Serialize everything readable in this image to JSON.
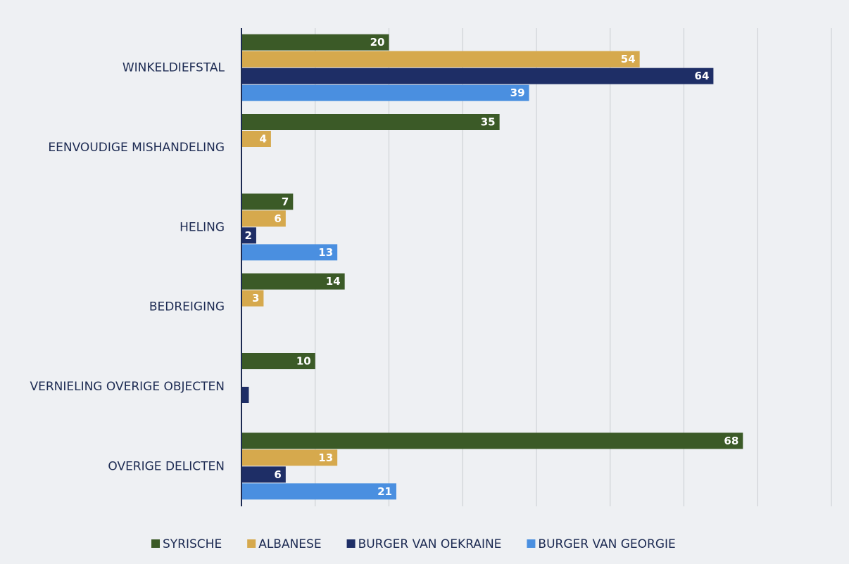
{
  "chart_data": {
    "type": "hbar",
    "categories": [
      "WINKELDIEFSTAL",
      "EENVOUDIGE MISHANDELING",
      "HELING",
      "BEDREIGING",
      "VERNIELING OVERIGE OBJECTEN",
      "OVERIGE DELICTEN"
    ],
    "series": [
      {
        "name": "SYRISCHE",
        "color": "#3b5a27",
        "values": [
          20,
          35,
          7,
          14,
          10,
          68
        ]
      },
      {
        "name": "ALBANESE",
        "color": "#d6a94d",
        "values": [
          54,
          4,
          6,
          3,
          null,
          13
        ]
      },
      {
        "name": "BURGER VAN OEKRAINE",
        "color": "#1e2e66",
        "values": [
          64,
          null,
          2,
          null,
          1,
          6
        ],
        "value_labels": [
          "64",
          null,
          "2",
          null,
          null,
          "6"
        ]
      },
      {
        "name": "BURGER VAN GEORGIE",
        "color": "#4a8fe0",
        "values": [
          39,
          null,
          13,
          null,
          null,
          21
        ]
      }
    ],
    "xlim": [
      0,
      80
    ],
    "xticks": [
      0,
      10,
      20,
      30,
      40,
      50,
      60,
      70,
      80
    ],
    "grid": true,
    "legend": "bottom"
  }
}
